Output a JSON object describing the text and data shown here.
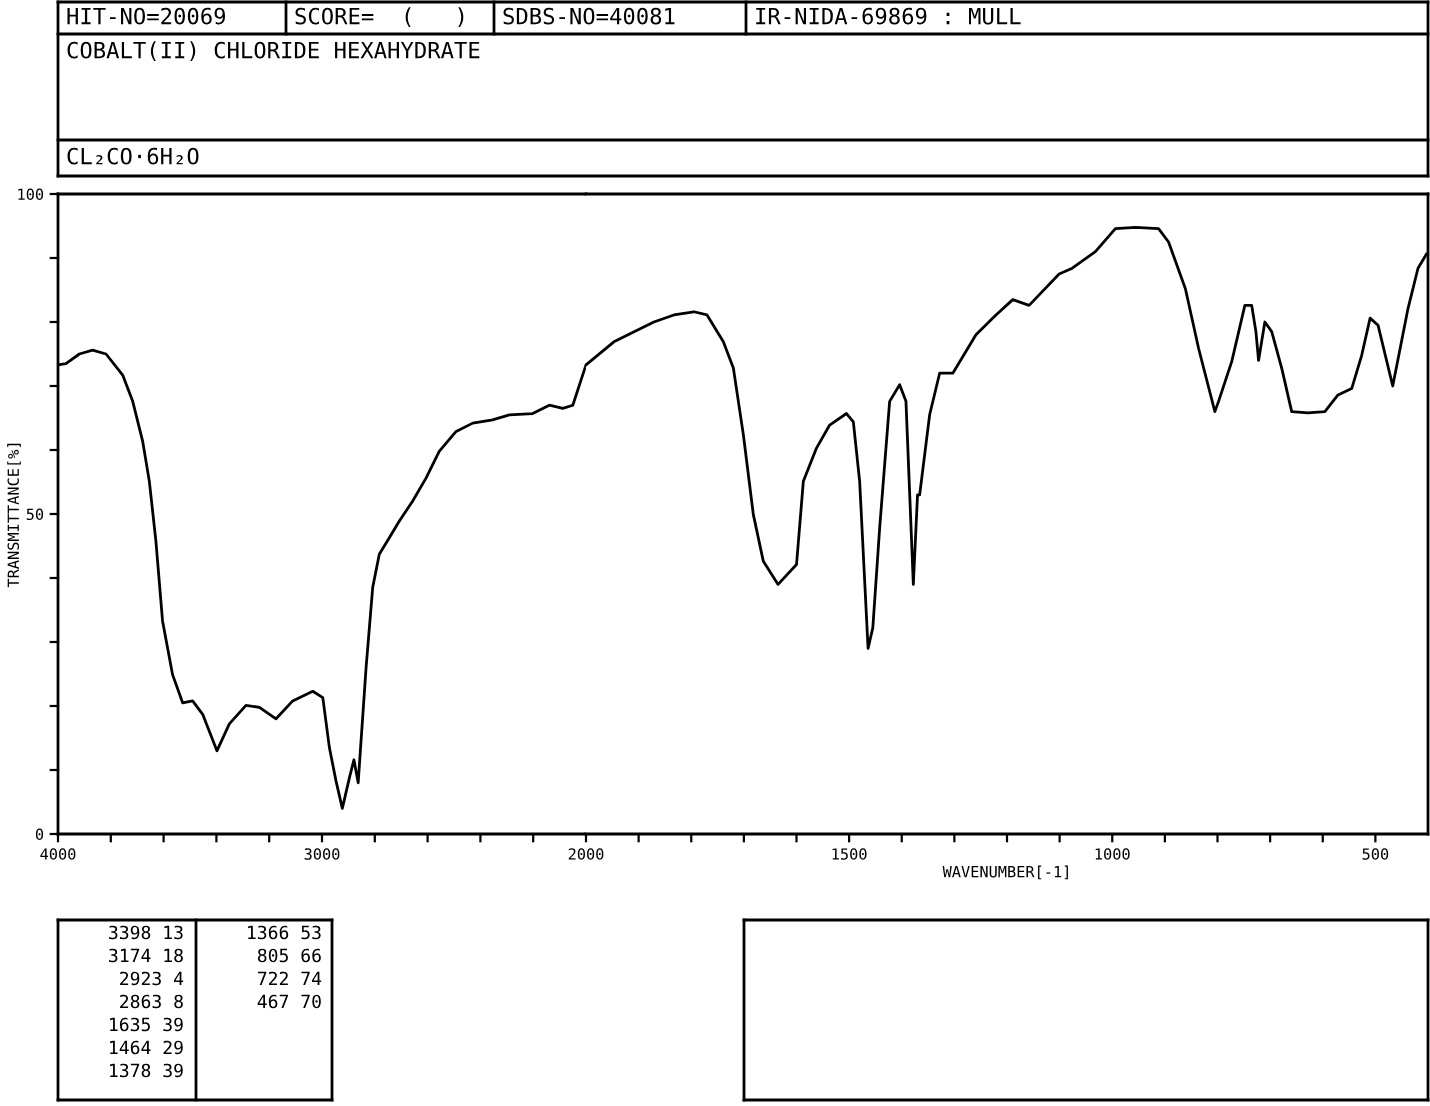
{
  "chart_data": [
    {
      "type": "line",
      "title": "COBALT(II) CHLORIDE HEXAHYDRATE",
      "subtitle": "CL₂CO·6H₂O",
      "ylabel": "TRANSMITTANCE[%]",
      "annotations": [
        "HIT-NO=20069",
        "SCORE=  (   )",
        "SDBS-NO=40081",
        "IR-NIDA-69869 : MULL",
        "3398 13",
        "3174 18",
        "2923 4",
        "2863 8",
        "1635 39",
        "1464 29",
        "1378 39",
        "1366 53",
        "805 66",
        "722 74",
        "467 70"
      ],
      "series": [
        {
          "color": "#000000",
          "x": [
            4000,
            3970,
            3919,
            3869,
            3818,
            3755,
            3717,
            3679,
            3654,
            3629,
            3604,
            3566,
            3528,
            3490,
            3452,
            3398,
            3351,
            3288,
            3237,
            3174,
            3111,
            3035,
            2997,
            2972,
            2947,
            2923,
            2896,
            2879,
            2863,
            2833,
            2808,
            2783,
            2745,
            2707,
            2657,
            2606,
            2556,
            2492,
            2429,
            2354,
            2290,
            2202,
            2139,
            2088,
            2050,
            2000
          ],
          "values": [
            73.3,
            73.5,
            75.0,
            75.6,
            75.0,
            71.7,
            67.6,
            61.3,
            55.1,
            45.7,
            33.3,
            24.9,
            20.5,
            20.8,
            18.7,
            13,
            17.2,
            20.1,
            19.8,
            18,
            20.8,
            22.3,
            21.3,
            13.5,
            8.3,
            4,
            8.8,
            11.6,
            8,
            26.0,
            38.5,
            43.7,
            46.3,
            48.9,
            52.0,
            55.6,
            59.8,
            62.9,
            64.2,
            64.7,
            65.5,
            65.7,
            67.0,
            66.5,
            67.0,
            73.3
          ]
        }
      ],
      "xlim": [
        4000,
        2000
      ],
      "ylim": [
        0,
        100
      ],
      "xticks": [
        4000,
        {
          "value": 3800,
          "label": null
        },
        {
          "value": 3600,
          "label": null
        },
        {
          "value": 3400,
          "label": null
        },
        {
          "value": 3200,
          "label": null
        },
        3000,
        {
          "value": 2800,
          "label": null
        },
        {
          "value": 2600,
          "label": null
        },
        {
          "value": 2400,
          "label": null
        },
        {
          "value": 2200,
          "label": null
        }
      ],
      "yticks": [
        0,
        {
          "value": 10,
          "label": null
        },
        {
          "value": 20,
          "label": null
        },
        {
          "value": 30,
          "label": null
        },
        {
          "value": 40,
          "label": null
        },
        50,
        {
          "value": 60,
          "label": null
        },
        {
          "value": 70,
          "label": null
        },
        {
          "value": 80,
          "label": null
        },
        {
          "value": 90,
          "label": null
        },
        100
      ]
    },
    {
      "type": "line",
      "xlabel": "WAVENUMBER[-1]",
      "tick_labels": "x",
      "series": [
        {
          "color": "#000000",
          "x": [
            2000,
            1947,
            1871,
            1833,
            1795,
            1770,
            1739,
            1720,
            1701,
            1682,
            1663,
            1635,
            1600,
            1587,
            1562,
            1537,
            1505,
            1492,
            1480,
            1464,
            1455,
            1442,
            1423,
            1404,
            1392,
            1378,
            1370,
            1366,
            1347,
            1328,
            1303,
            1259,
            1221,
            1189,
            1158,
            1101,
            1076,
            1032,
            994,
            956,
            912,
            893,
            861,
            836,
            805,
            798,
            773,
            748,
            735,
            727,
            722,
            710,
            697,
            678,
            659,
            628,
            596,
            571,
            545,
            526,
            510,
            495,
            467,
            438,
            419,
            403
          ],
          "values": [
            73.3,
            76.9,
            80.0,
            81.1,
            81.6,
            81.1,
            76.9,
            72.8,
            62.4,
            49.9,
            42.6,
            39,
            42.1,
            55.1,
            60.3,
            63.9,
            65.7,
            64.4,
            55.1,
            29,
            32.2,
            47.8,
            67.6,
            70.2,
            67.6,
            39,
            53.0,
            53,
            65.5,
            72.0,
            72.0,
            78.0,
            81.1,
            83.5,
            82.6,
            87.5,
            88.4,
            91.0,
            94.6,
            94.8,
            94.6,
            92.5,
            85.2,
            75.9,
            66,
            67.6,
            73.8,
            82.6,
            82.6,
            78.5,
            74,
            80.0,
            78.5,
            72.8,
            66.0,
            65.8,
            66.0,
            68.6,
            69.6,
            74.8,
            80.6,
            79.5,
            70,
            82.1,
            88.4,
            90.6
          ]
        }
      ],
      "xlim": [
        2000,
        400
      ],
      "ylim": [
        0,
        100
      ],
      "xticks": [
        2000,
        {
          "value": 1900,
          "label": null
        },
        {
          "value": 1800,
          "label": null
        },
        {
          "value": 1700,
          "label": null
        },
        {
          "value": 1600,
          "label": null
        },
        1500,
        {
          "value": 1400,
          "label": null
        },
        {
          "value": 1300,
          "label": null
        },
        {
          "value": 1200,
          "label": null
        },
        {
          "value": 1100,
          "label": null
        },
        1000,
        {
          "value": 900,
          "label": null
        },
        {
          "value": 800,
          "label": null
        },
        {
          "value": 700,
          "label": null
        },
        {
          "value": 600,
          "label": null
        },
        500
      ]
    }
  ]
}
